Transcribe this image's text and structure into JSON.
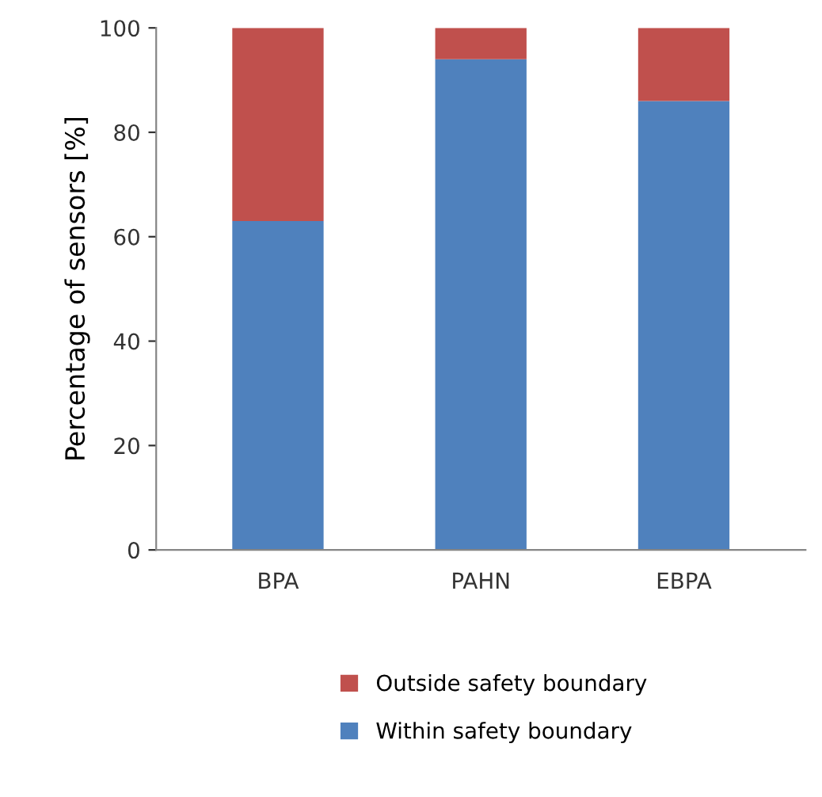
{
  "chart_data": {
    "type": "bar",
    "stacked": true,
    "ylabel": "Percentage of sensors [%]",
    "categories": [
      "BPA",
      "PAHN",
      "EBPA"
    ],
    "series": [
      {
        "name": "Within safety boundary",
        "color": "#4f81bd",
        "values": [
          63,
          94,
          86
        ]
      },
      {
        "name": "Outside safety boundary",
        "color": "#c0504d",
        "values": [
          37,
          6,
          14
        ]
      }
    ],
    "ylim": [
      0,
      100
    ],
    "yticks": [
      0,
      20,
      40,
      60,
      80,
      100
    ],
    "grid": false,
    "legend": "bottom"
  }
}
